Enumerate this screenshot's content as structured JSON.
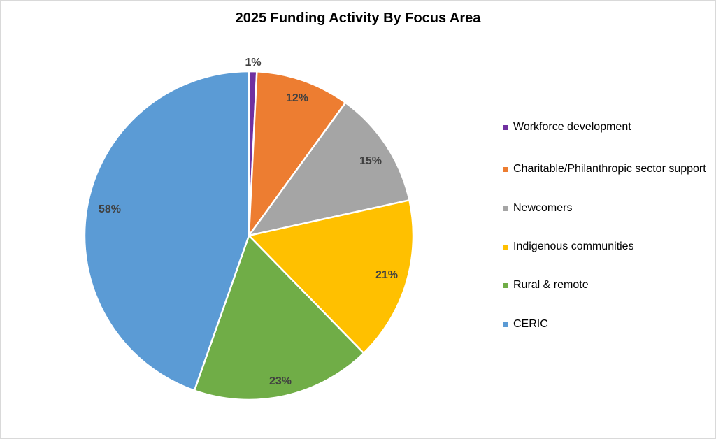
{
  "chart_data": {
    "type": "pie",
    "title": "2025 Funding Activity By Focus Area",
    "slices": [
      {
        "label": "Workforce development",
        "value": 1,
        "value_label": "1%",
        "color": "#7030a0"
      },
      {
        "label": "Charitable/Philanthropic sector support",
        "value": 12,
        "value_label": "12%",
        "color": "#ed7d31"
      },
      {
        "label": "Newcomers",
        "value": 15,
        "value_label": "15%",
        "color": "#a5a5a5"
      },
      {
        "label": "Indigenous communities",
        "value": 21,
        "value_label": "21%",
        "color": "#ffc000"
      },
      {
        "label": "Rural & remote",
        "value": 23,
        "value_label": "23%",
        "color": "#70ad47"
      },
      {
        "label": "CERIC",
        "value": 58,
        "value_label": "58%",
        "color": "#5b9bd5"
      }
    ],
    "legend": "right"
  }
}
